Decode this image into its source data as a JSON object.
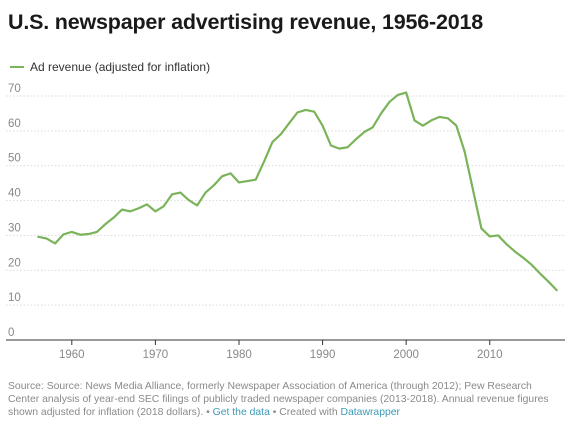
{
  "title": "U.S. newspaper advertising revenue, 1956-2018",
  "legend": {
    "label": "Ad revenue (adjusted for inflation)"
  },
  "colors": {
    "line": "#7bb35a",
    "grid": "#d9d9d9",
    "axis_text": "#888888",
    "link": "#3b9ab8"
  },
  "footer": {
    "text": "Source: Source: News Media Alliance, formerly Newspaper Association of America (through 2012); Pew Research Center analysis of year-end SEC filings of publicly traded newspaper companies (2013-2018). Annual revenue figures shown adjusted for inflation (2018 dollars).",
    "sep1": " • ",
    "get_data": "Get the data",
    "sep2": " • Created with ",
    "datawrapper": "Datawrapper"
  },
  "chart_data": {
    "type": "line",
    "title": "U.S. newspaper advertising revenue, 1956-2018",
    "xlabel": "",
    "ylabel": "",
    "xlim": [
      1955,
      2019
    ],
    "ylim": [
      0,
      70
    ],
    "x_ticks": [
      1960,
      1970,
      1980,
      1990,
      2000,
      2010
    ],
    "y_ticks": [
      0,
      10,
      20,
      30,
      40,
      50,
      60,
      70
    ],
    "grid": true,
    "legend_position": "top-left",
    "series": [
      {
        "name": "Ad revenue (adjusted for inflation)",
        "x": [
          1956,
          1957,
          1958,
          1959,
          1960,
          1961,
          1962,
          1963,
          1964,
          1965,
          1966,
          1967,
          1968,
          1969,
          1970,
          1971,
          1972,
          1973,
          1974,
          1975,
          1976,
          1977,
          1978,
          1979,
          1980,
          1981,
          1982,
          1983,
          1984,
          1985,
          1986,
          1987,
          1988,
          1989,
          1990,
          1991,
          1992,
          1993,
          1994,
          1995,
          1996,
          1997,
          1998,
          1999,
          2000,
          2001,
          2002,
          2003,
          2004,
          2005,
          2006,
          2007,
          2008,
          2009,
          2010,
          2011,
          2012,
          2013,
          2014,
          2015,
          2016,
          2017,
          2018
        ],
        "y": [
          29.6,
          29.1,
          27.7,
          30.3,
          31.0,
          30.2,
          30.4,
          31.0,
          33.2,
          35.1,
          37.4,
          36.9,
          37.8,
          38.9,
          36.9,
          38.4,
          41.8,
          42.3,
          40.1,
          38.6,
          42.3,
          44.4,
          47.0,
          47.8,
          45.2,
          45.6,
          46.0,
          51.2,
          56.8,
          59.0,
          62.2,
          65.3,
          66.0,
          65.5,
          61.5,
          55.8,
          54.9,
          55.3,
          57.6,
          59.7,
          61.0,
          65.0,
          68.3,
          70.3,
          71.0,
          63.0,
          61.5,
          63.0,
          64.0,
          63.6,
          61.5,
          54.0,
          43.0,
          32.0,
          29.7,
          30.0,
          27.5,
          25.4,
          23.6,
          21.6,
          19.1,
          16.8,
          14.3
        ]
      }
    ]
  }
}
